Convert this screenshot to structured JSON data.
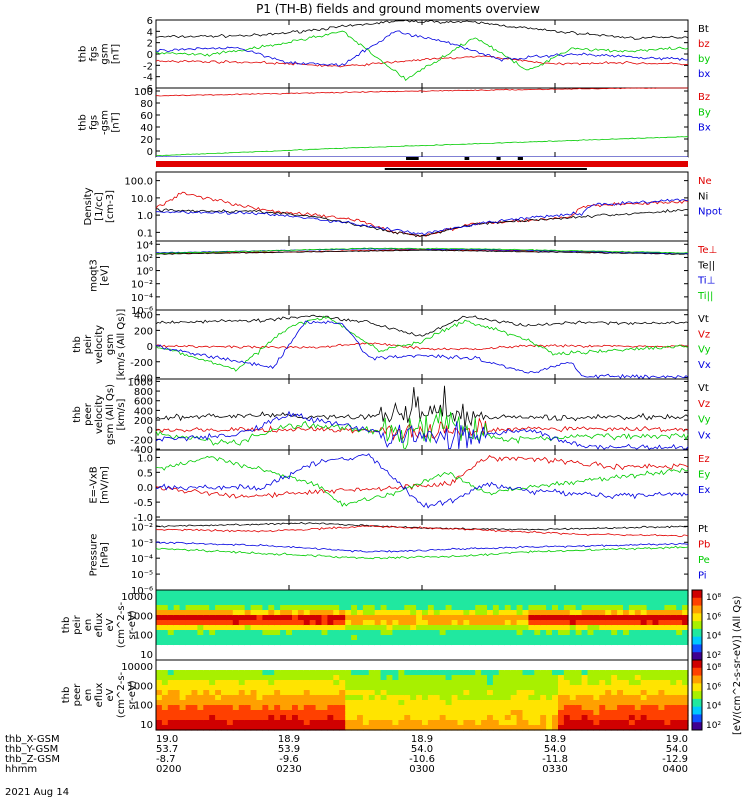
{
  "title": "P1 (TH-B) fields and ground moments overview",
  "date": "2021 Aug 14",
  "colors": {
    "black": "#000000",
    "red": "#e00000",
    "green": "#00cc00",
    "blue": "#0000e0",
    "axis": "#000000"
  },
  "chart_data": [
    {
      "type": "line",
      "ylabel": [
        "thb",
        "fgs",
        "gsm",
        "[nT]"
      ],
      "yticks": [
        "6",
        "4",
        "2",
        "0",
        "-2",
        "-4",
        "-6"
      ],
      "ylim": [
        -6,
        6
      ],
      "scale": "linear",
      "series": [
        {
          "name": "Bt",
          "color": "black"
        },
        {
          "name": "bz",
          "color": "red"
        },
        {
          "name": "by",
          "color": "green"
        },
        {
          "name": "bx",
          "color": "blue"
        }
      ]
    },
    {
      "type": "line",
      "ylabel": [
        "thb",
        "fgs",
        "-gsm",
        "[nT]"
      ],
      "yticks": [
        "100",
        "80",
        "60",
        "40",
        "20",
        "0"
      ],
      "ylim": [
        -10,
        105
      ],
      "scale": "linear",
      "series": [
        {
          "name": "Bz",
          "color": "red"
        },
        {
          "name": "By",
          "color": "green"
        },
        {
          "name": "Bx",
          "color": "blue"
        }
      ]
    },
    {
      "type": "line",
      "ylabel": [
        "Density",
        "[1/cc]",
        "[cm-3]"
      ],
      "yticks": [
        "100.0",
        "10.0",
        "1.0",
        "0.1"
      ],
      "ylim": [
        -1.5,
        2.5
      ],
      "scale": "log",
      "series": [
        {
          "name": "Ne",
          "color": "red"
        },
        {
          "name": "Ni",
          "color": "black"
        },
        {
          "name": "Npot",
          "color": "blue"
        }
      ]
    },
    {
      "type": "line",
      "ylabel": [
        "moqt3",
        "[eV]"
      ],
      "yticks": [
        "10⁴",
        "10²",
        "10⁰",
        "10⁻²",
        "10⁻⁴",
        "10⁻⁶"
      ],
      "ylim": [
        -6,
        4.5
      ],
      "scale": "log",
      "series": [
        {
          "name": "Te⊥",
          "color": "red"
        },
        {
          "name": "Te||",
          "color": "black"
        },
        {
          "name": "Ti⊥",
          "color": "blue"
        },
        {
          "name": "Ti||",
          "color": "green"
        }
      ]
    },
    {
      "type": "line",
      "ylabel": [
        "thb",
        "peir",
        "velocity",
        "gsm",
        "[km/s (All Qs)]"
      ],
      "yticks": [
        "400",
        "200",
        "0",
        "-200",
        "-400"
      ],
      "ylim": [
        -420,
        460
      ],
      "scale": "linear",
      "series": [
        {
          "name": "Vt",
          "color": "black"
        },
        {
          "name": "Vz",
          "color": "red"
        },
        {
          "name": "Vy",
          "color": "green"
        },
        {
          "name": "Vx",
          "color": "blue"
        }
      ]
    },
    {
      "type": "line",
      "ylabel": [
        "thb",
        "peer",
        "velocity",
        "gsm (All Qs)",
        "[km/s]"
      ],
      "yticks": [
        "1000",
        "800",
        "600",
        "400",
        "200",
        "0",
        "-200",
        "-400"
      ],
      "ylim": [
        -420,
        1050
      ],
      "scale": "linear",
      "series": [
        {
          "name": "Vt",
          "color": "black"
        },
        {
          "name": "Vz",
          "color": "red"
        },
        {
          "name": "Vy",
          "color": "green"
        },
        {
          "name": "Vx",
          "color": "blue"
        }
      ]
    },
    {
      "type": "line",
      "ylabel": [
        "E=-VxB",
        "[mV/m]"
      ],
      "yticks": [
        "1.0",
        "0.5",
        "0.0",
        "-0.5",
        "-1.0"
      ],
      "ylim": [
        -1.1,
        1.25
      ],
      "scale": "linear",
      "series": [
        {
          "name": "Ez",
          "color": "red"
        },
        {
          "name": "Ey",
          "color": "green"
        },
        {
          "name": "Ex",
          "color": "blue"
        }
      ]
    },
    {
      "type": "line",
      "ylabel": [
        "Pressure",
        "[nPa]"
      ],
      "yticks": [
        "10⁻²",
        "10⁻³",
        "10⁻⁴",
        "10⁻⁵",
        "10⁻⁶"
      ],
      "ylim": [
        -6,
        -1.6
      ],
      "scale": "log",
      "series": [
        {
          "name": "Pt",
          "color": "black"
        },
        {
          "name": "Pb",
          "color": "red"
        },
        {
          "name": "Pe",
          "color": "green"
        },
        {
          "name": "Pi",
          "color": "blue"
        }
      ]
    },
    {
      "type": "heatmap",
      "ylabel": [
        "thb",
        "peir",
        "en",
        "eflux",
        "eV",
        "(cm^2-s-",
        "sr-eV)"
      ],
      "yticks": [
        "10000",
        "1000",
        "100",
        "10"
      ],
      "ylim": [
        0.7,
        4.3
      ],
      "scale": "log"
    },
    {
      "type": "heatmap",
      "ylabel": [
        "thb",
        "peer",
        "en",
        "eflux",
        "eV",
        "(cm^2-s-",
        "sr-eV)"
      ],
      "yticks": [
        "10000",
        "1000",
        "100",
        "10"
      ],
      "ylim": [
        0.7,
        4.3
      ],
      "scale": "log"
    }
  ],
  "colorbars": [
    {
      "ticks": [
        "10⁸",
        "10⁶",
        "10⁴",
        "10²"
      ],
      "label": "[eV/(cm^2-s-sr-eV)] (All Qs)"
    },
    {
      "ticks": [
        "10⁸",
        "10⁶",
        "10⁴",
        "10²"
      ],
      "label": ""
    }
  ],
  "xaxis": {
    "row_labels": [
      "thb_X-GSM",
      "thb_Y-GSM",
      "thb_Z-GSM",
      "hhmm"
    ],
    "columns": [
      [
        "19.0",
        "53.7",
        "-8.7",
        "0200"
      ],
      [
        "18.9",
        "53.9",
        "-9.6",
        "0230"
      ],
      [
        "18.9",
        "54.0",
        "-10.6",
        "0300"
      ],
      [
        "18.9",
        "54.0",
        "-11.8",
        "0330"
      ],
      [
        "19.0",
        "54.0",
        "-12.9",
        "0400"
      ]
    ]
  }
}
